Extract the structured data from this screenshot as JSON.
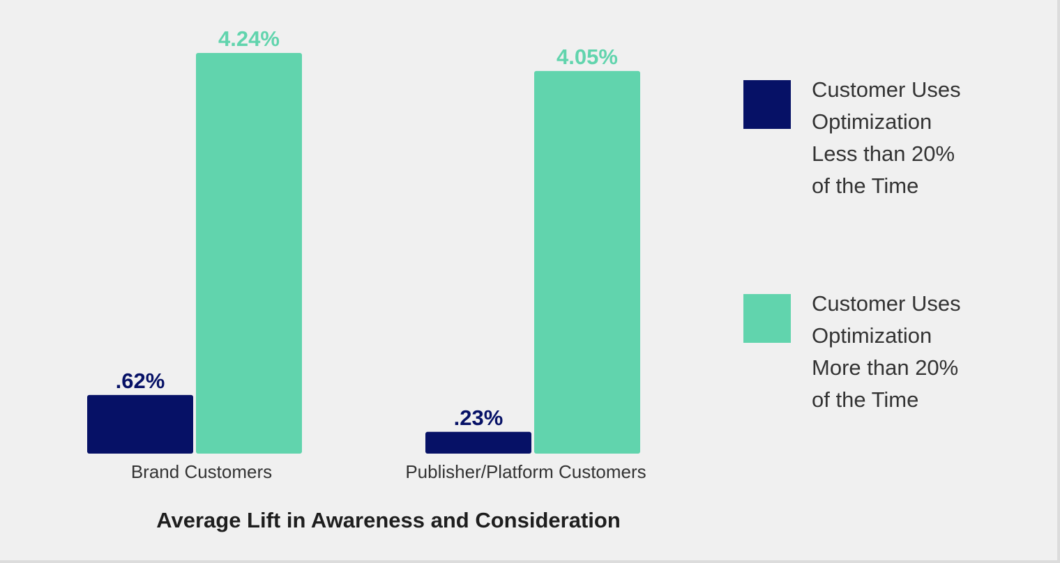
{
  "chart_data": {
    "type": "bar",
    "categories": [
      "Brand Customers",
      "Publisher/Platform Customers"
    ],
    "series": [
      {
        "name": "Customer Uses Optimization Less than 20% of the Time",
        "legend_lines": [
          "Customer Uses",
          "Optimization",
          "Less than 20%",
          "of the Time"
        ],
        "values": [
          0.62,
          0.23
        ],
        "labels": [
          ".62%",
          ".23%"
        ],
        "color": "#061166"
      },
      {
        "name": "Customer Uses Optimization More than 20% of the Time",
        "legend_lines": [
          "Customer Uses",
          "Optimization",
          "More than 20%",
          "of the Time"
        ],
        "values": [
          4.24,
          4.05
        ],
        "labels": [
          "4.24%",
          "4.05%"
        ],
        "color": "#61d4ad"
      }
    ],
    "title": "",
    "xlabel": "Average Lift in Awareness and Consideration",
    "ylabel": "",
    "grid": false,
    "legend_position": "right"
  }
}
